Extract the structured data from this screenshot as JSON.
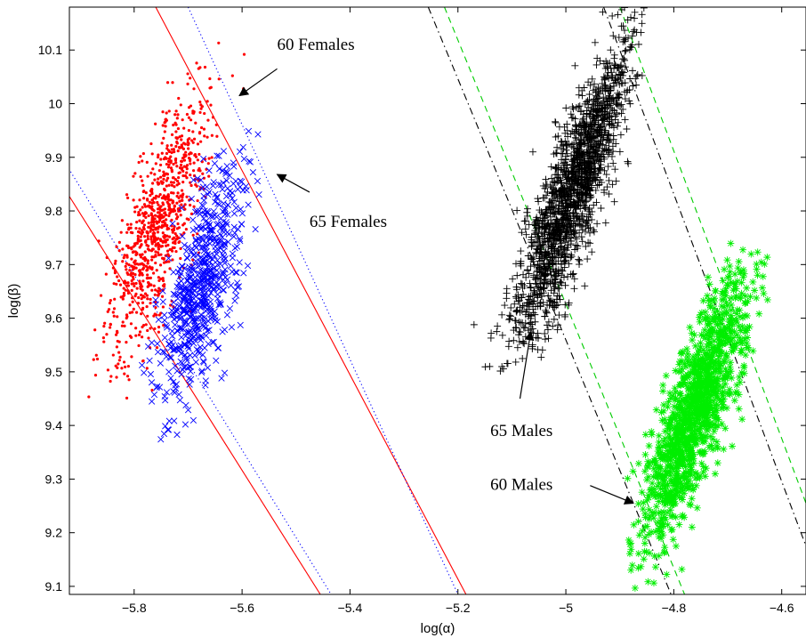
{
  "chart_data": {
    "type": "scatter",
    "xlabel": "log(α)",
    "ylabel": "log(β)",
    "xlim": [
      -5.92,
      -4.555
    ],
    "ylim": [
      9.085,
      10.18
    ],
    "xticks": [
      -5.8,
      -5.6,
      -5.4,
      -5.2,
      -5.0,
      -4.8,
      -4.6
    ],
    "xtick_labels": [
      "−5.8",
      "−5.6",
      "−5.4",
      "−5.2",
      "−5",
      "−4.8",
      "−4.6"
    ],
    "yticks": [
      9.1,
      9.2,
      9.3,
      9.4,
      9.5,
      9.6,
      9.7,
      9.8,
      9.9,
      10.0,
      10.1
    ],
    "ytick_labels": [
      "9.1",
      "9.2",
      "9.3",
      "9.4",
      "9.5",
      "9.6",
      "9.7",
      "9.8",
      "9.9",
      "10",
      "10.1"
    ],
    "grid": false,
    "clusters": [
      {
        "label": "60 Females",
        "color": "#ff0000",
        "marker": "dot",
        "center": [
          -5.755,
          9.77
        ],
        "major_axis": [
          0.3,
          1.0
        ],
        "major_sd": 0.13,
        "minor_sd": 0.03,
        "count": 900,
        "range_x": [
          -5.92,
          -5.58
        ],
        "range_y": [
          9.44,
          10.14
        ]
      },
      {
        "label": "65 Females",
        "color": "#0000ff",
        "marker": "x",
        "center": [
          -5.675,
          9.66
        ],
        "major_axis": [
          0.26,
          1.0
        ],
        "major_sd": 0.115,
        "minor_sd": 0.028,
        "count": 650,
        "range_x": [
          -5.87,
          -5.51
        ],
        "range_y": [
          9.37,
          9.95
        ]
      },
      {
        "label": "65 Males",
        "color": "#000000",
        "marker": "plus",
        "center": [
          -4.99,
          9.83
        ],
        "major_axis": [
          0.34,
          1.0
        ],
        "major_sd": 0.145,
        "minor_sd": 0.026,
        "count": 1700,
        "range_x": [
          -5.26,
          -4.85
        ],
        "range_y": [
          9.5,
          10.18
        ]
      },
      {
        "label": "60 Males",
        "color": "#00ee00",
        "marker": "star",
        "center": [
          -4.76,
          9.43
        ],
        "major_axis": [
          0.33,
          1.0
        ],
        "major_sd": 0.13,
        "minor_sd": 0.026,
        "count": 1300,
        "range_x": [
          -4.89,
          -4.555
        ],
        "range_y": [
          9.09,
          9.74
        ]
      }
    ],
    "reference_lines": [
      {
        "color": "#ff0000",
        "style": "solid",
        "points": [
          [
            -5.925,
            9.835
          ],
          [
            -5.455,
            9.085
          ]
        ]
      },
      {
        "color": "#ff0000",
        "style": "solid",
        "points": [
          [
            -5.76,
            10.18
          ],
          [
            -5.185,
            9.085
          ]
        ]
      },
      {
        "color": "#0000ff",
        "style": "dotted",
        "points": [
          [
            -5.925,
            9.885
          ],
          [
            -5.435,
            9.085
          ]
        ]
      },
      {
        "color": "#0000ff",
        "style": "dotted",
        "points": [
          [
            -5.7,
            10.18
          ],
          [
            -5.2,
            9.085
          ]
        ]
      },
      {
        "color": "#000000",
        "style": "dashdot",
        "points": [
          [
            -5.255,
            10.18
          ],
          [
            -4.805,
            9.085
          ]
        ]
      },
      {
        "color": "#000000",
        "style": "dashdot",
        "points": [
          [
            -4.93,
            10.18
          ],
          [
            -4.555,
            9.175
          ]
        ]
      },
      {
        "color": "#00cc00",
        "style": "dashed",
        "points": [
          [
            -5.225,
            10.18
          ],
          [
            -4.78,
            9.085
          ]
        ]
      },
      {
        "color": "#00cc00",
        "style": "dashed",
        "points": [
          [
            -4.9,
            10.18
          ],
          [
            -4.555,
            9.255
          ]
        ]
      }
    ],
    "annotations": [
      {
        "text": "60 Females",
        "text_at": [
          -5.535,
          10.1
        ],
        "arrow_from": [
          -5.535,
          10.065
        ],
        "arrow_to": [
          -5.605,
          10.015
        ]
      },
      {
        "text": "65 Females",
        "text_at": [
          -5.475,
          9.77
        ],
        "arrow_from": [
          -5.475,
          9.835
        ],
        "arrow_to": [
          -5.535,
          9.868
        ]
      },
      {
        "text": "65 Males",
        "text_at": [
          -5.14,
          9.38
        ],
        "arrow_from": [
          -5.085,
          9.45
        ],
        "arrow_to": [
          -5.065,
          9.575
        ]
      },
      {
        "text": "60 Males",
        "text_at": [
          -5.14,
          9.28
        ],
        "arrow_from": [
          -4.955,
          9.288
        ],
        "arrow_to": [
          -4.875,
          9.255
        ]
      }
    ]
  }
}
